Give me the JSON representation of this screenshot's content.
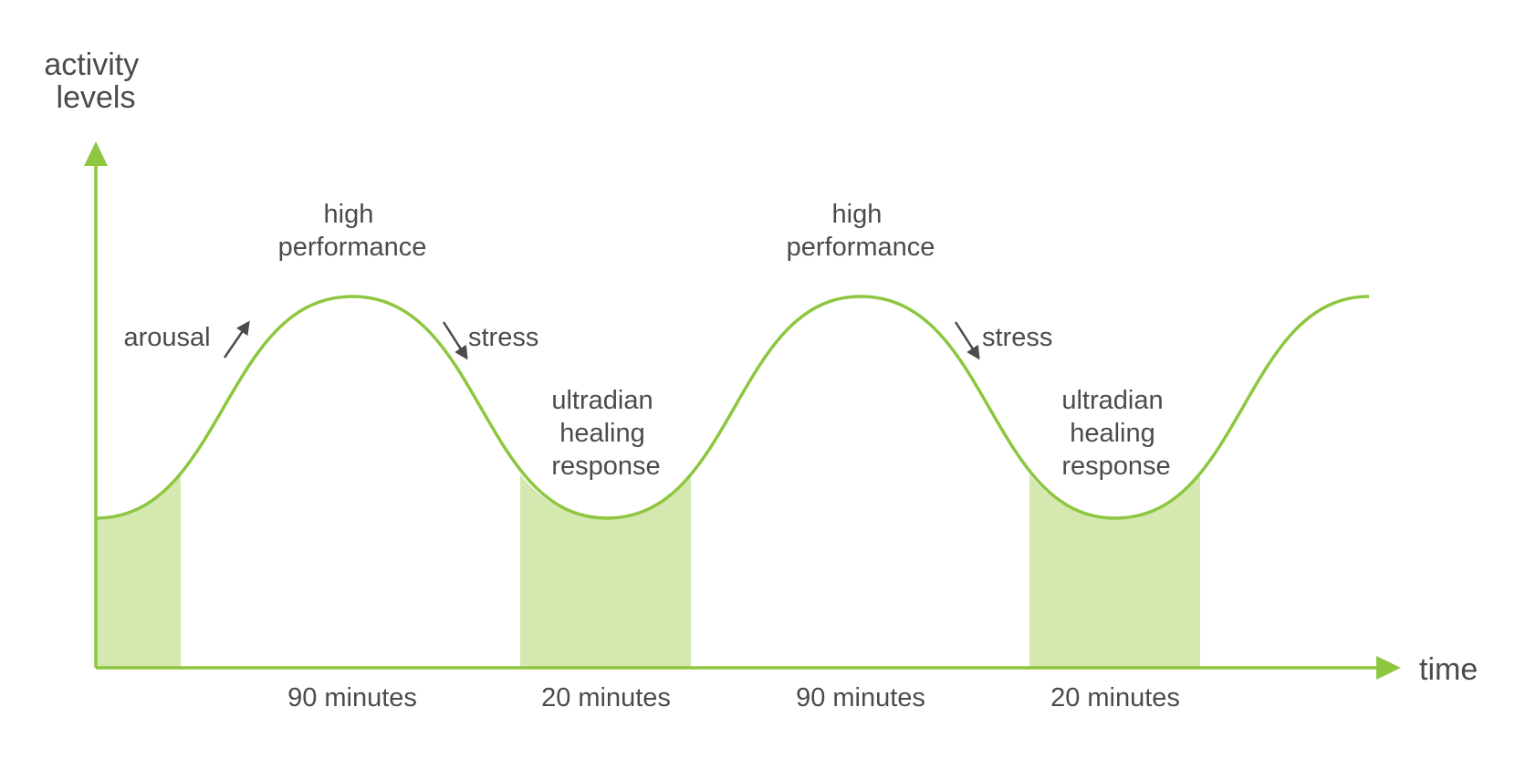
{
  "colors": {
    "accent": "#8dc63f",
    "fill": "#d5e8b0",
    "text": "#4b4b4b"
  },
  "y_axis_label": [
    "activity",
    "levels"
  ],
  "x_axis_label": "time",
  "peak_labels": [
    [
      "high",
      "performance"
    ],
    [
      "high",
      "performance"
    ]
  ],
  "trough_labels": [
    [
      "ultradian",
      "healing",
      "response"
    ],
    [
      "ultradian",
      "healing",
      "response"
    ]
  ],
  "arousal_label": "arousal",
  "stress_labels": [
    "stress",
    "stress"
  ],
  "duration_labels": [
    "90 minutes",
    "20 minutes",
    "90 minutes",
    "20 minutes"
  ]
}
